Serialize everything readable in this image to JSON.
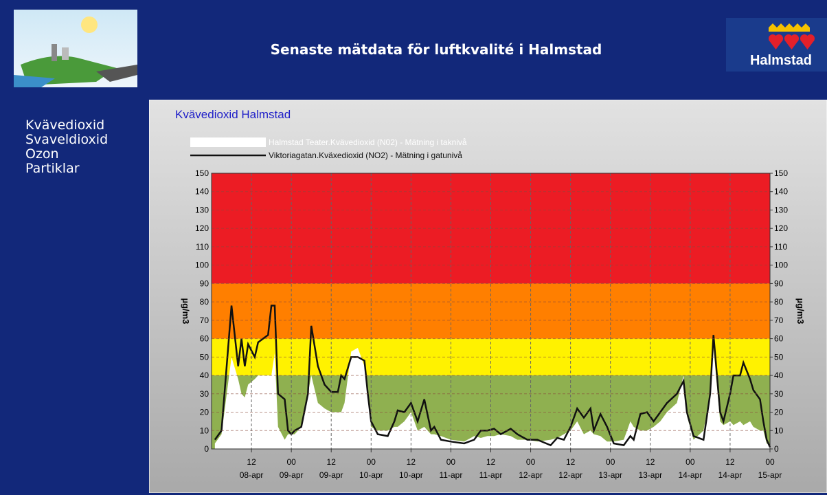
{
  "header": {
    "title": "Senaste mätdata för luftkvalité i Halmstad",
    "logo_text": "Halmstad"
  },
  "nav": {
    "items": [
      "Kvävedioxid",
      "Svaveldioxid",
      "Ozon",
      "Partiklar"
    ]
  },
  "chart_data": {
    "type": "line-area",
    "title": "Kvävedioxid Halmstad",
    "ylabel": "µg/m3",
    "y2label": "µg/m3",
    "xlim": [
      0,
      168
    ],
    "ylim": [
      0,
      150
    ],
    "y2lim": [
      0,
      150
    ],
    "yticks": [
      0,
      10,
      20,
      30,
      40,
      50,
      60,
      70,
      80,
      90,
      100,
      110,
      120,
      130,
      140,
      150
    ],
    "y2ticks": [
      0,
      10,
      20,
      30,
      40,
      50,
      60,
      70,
      80,
      90,
      100,
      110,
      120,
      130,
      140,
      150
    ],
    "xticks": [
      {
        "value": 12,
        "label": "12",
        "date": "08-apr"
      },
      {
        "value": 24,
        "label": "00",
        "date": "09-apr"
      },
      {
        "value": 36,
        "label": "12",
        "date": "09-apr"
      },
      {
        "value": 48,
        "label": "00",
        "date": "10-apr"
      },
      {
        "value": 60,
        "label": "12",
        "date": "10-apr"
      },
      {
        "value": 72,
        "label": "00",
        "date": "11-apr"
      },
      {
        "value": 84,
        "label": "12",
        "date": "11-apr"
      },
      {
        "value": 96,
        "label": "00",
        "date": "12-apr"
      },
      {
        "value": 108,
        "label": "12",
        "date": "12-apr"
      },
      {
        "value": 120,
        "label": "00",
        "date": "13-apr"
      },
      {
        "value": 132,
        "label": "12",
        "date": "13-apr"
      },
      {
        "value": 144,
        "label": "00",
        "date": "14-apr"
      },
      {
        "value": 156,
        "label": "12",
        "date": "14-apr"
      },
      {
        "value": 168,
        "label": "00",
        "date": "15-apr"
      }
    ],
    "grid": true,
    "bands": [
      {
        "from": 90,
        "to": 150,
        "color": "#ec1c24"
      },
      {
        "from": 60,
        "to": 90,
        "color": "#ff7f00"
      },
      {
        "from": 40,
        "to": 60,
        "color": "#fff200"
      },
      {
        "from": 0,
        "to": 40,
        "color": "#8fb050"
      }
    ],
    "x": [
      1,
      3,
      6,
      8,
      9,
      10,
      11,
      13,
      14,
      17,
      18,
      19,
      20,
      22,
      23,
      24,
      25,
      27,
      29,
      30,
      32,
      34,
      36,
      38,
      39,
      40,
      42,
      44,
      46,
      47,
      48,
      50,
      53,
      55,
      56,
      58,
      60,
      62,
      64,
      66,
      67,
      69,
      72,
      76,
      79,
      81,
      83,
      85,
      87,
      90,
      92,
      95,
      98,
      102,
      104,
      106,
      108,
      110,
      112,
      114,
      115,
      117,
      119,
      121,
      124,
      126,
      127,
      129,
      131,
      133,
      135,
      137,
      140,
      142,
      143,
      145,
      148,
      150,
      151,
      153,
      154,
      156,
      157,
      159,
      160,
      162,
      163,
      165,
      166,
      167,
      168
    ],
    "series": [
      {
        "name": "Halmstad Teater.Kvävedioxid (N02) - Mätning i taknivå",
        "color": "#ffffff",
        "kind": "area",
        "values": [
          3,
          8,
          50,
          38,
          30,
          28,
          35,
          38,
          40,
          40,
          40,
          52,
          12,
          5,
          8,
          8,
          8,
          12,
          30,
          40,
          25,
          22,
          20,
          20,
          20,
          25,
          53,
          55,
          45,
          28,
          12,
          10,
          10,
          12,
          12,
          15,
          20,
          10,
          12,
          8,
          8,
          7,
          5,
          4,
          7,
          6,
          7,
          7,
          8,
          7,
          5,
          5,
          4,
          5,
          6,
          8,
          10,
          15,
          8,
          10,
          8,
          7,
          4,
          4,
          5,
          15,
          12,
          10,
          10,
          12,
          15,
          20,
          25,
          40,
          18,
          5,
          10,
          30,
          55,
          15,
          13,
          15,
          13,
          15,
          13,
          15,
          12,
          10,
          10,
          3,
          2
        ]
      },
      {
        "name": "Viktoriagatan.Kväxedioxid (NO2) - Mätning i gatunivå",
        "color": "#111111",
        "kind": "line",
        "values": [
          5,
          10,
          78,
          45,
          60,
          45,
          57,
          50,
          58,
          62,
          78,
          78,
          30,
          27,
          10,
          8,
          10,
          12,
          30,
          67,
          45,
          35,
          31,
          31,
          40,
          38,
          50,
          50,
          48,
          30,
          15,
          8,
          7,
          15,
          21,
          20,
          25,
          15,
          27,
          10,
          12,
          5,
          4,
          3,
          5,
          10,
          10,
          11,
          8,
          11,
          8,
          5,
          5,
          2,
          6,
          5,
          12,
          22,
          17,
          22,
          10,
          19,
          12,
          3,
          2,
          7,
          5,
          19,
          20,
          15,
          20,
          25,
          30,
          37,
          20,
          7,
          5,
          30,
          62,
          20,
          15,
          30,
          40,
          40,
          47,
          38,
          32,
          27,
          15,
          5,
          1
        ]
      }
    ]
  }
}
